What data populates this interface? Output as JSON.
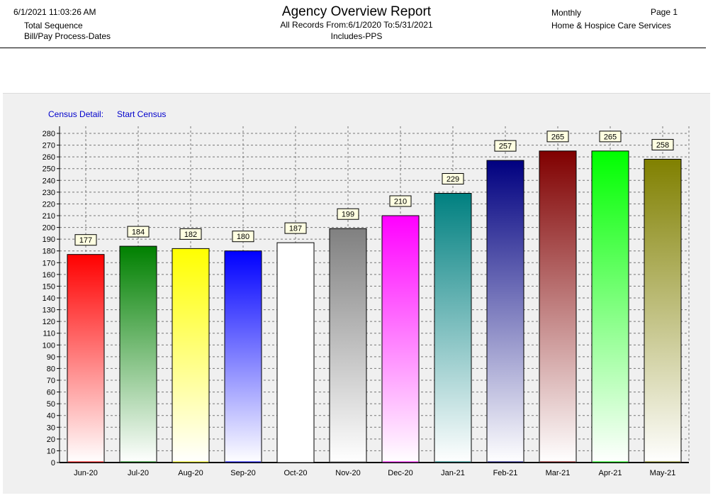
{
  "header": {
    "datetime": "6/1/2021 11:03:26 AM",
    "line2": "Total Sequence",
    "line3": "Bill/Pay Process-Dates",
    "title": "Agency Overview Report",
    "subtitle1": "All Records From:6/1/2020  To:5/31/2021",
    "subtitle2": "Includes-PPS",
    "period": "Monthly",
    "page": "Page 1",
    "agency": "Home & Hospice Care Services"
  },
  "caption": {
    "left": "Census Detail:",
    "right": "Start Census"
  },
  "chart_data": {
    "type": "bar",
    "title": "",
    "xlabel": "",
    "ylabel": "",
    "categories": [
      "Jun-20",
      "Jul-20",
      "Aug-20",
      "Sep-20",
      "Oct-20",
      "Nov-20",
      "Dec-20",
      "Jan-21",
      "Feb-21",
      "Mar-21",
      "Apr-21",
      "May-21"
    ],
    "values": [
      177,
      184,
      182,
      180,
      187,
      199,
      210,
      229,
      257,
      265,
      265,
      258
    ],
    "colors": [
      "#ff0000",
      "#008000",
      "#ffff00",
      "#0000ff",
      "#ffffff",
      "#808080",
      "#ff00ff",
      "#008080",
      "#000080",
      "#800000",
      "#00ff00",
      "#808000"
    ],
    "ylim": [
      0,
      280
    ],
    "ytick_step": 10,
    "grid": true,
    "gradient": "solid color at top fading to white at bottom",
    "data_labels": true
  }
}
